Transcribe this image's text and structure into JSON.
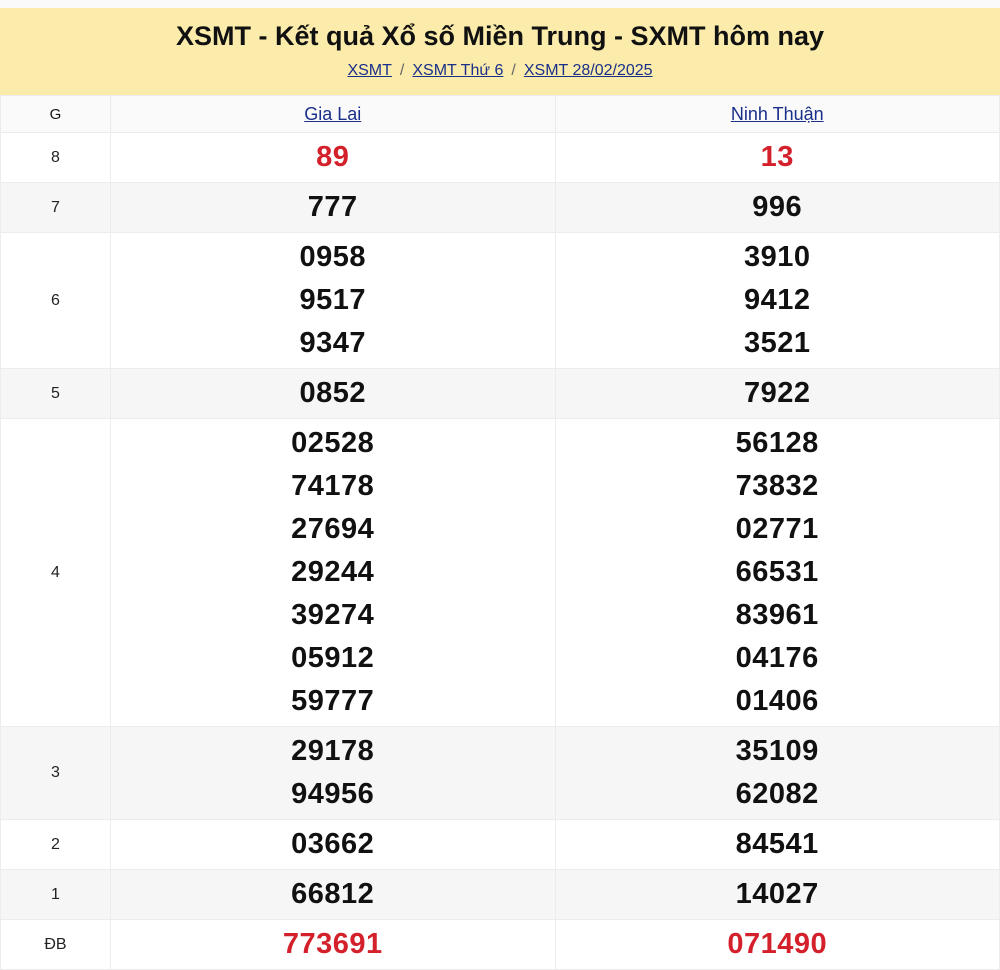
{
  "header": {
    "title": "XSMT - Kết quả Xổ số Miền Trung - SXMT hôm nay",
    "breadcrumb": [
      "XSMT",
      "XSMT Thứ 6",
      "XSMT 28/02/2025"
    ],
    "background_color": "#fcecab"
  },
  "table": {
    "columns": [
      "G",
      "Gia Lai",
      "Ninh Thuận"
    ],
    "highlight_color": "#d4202a",
    "rows": [
      {
        "prize": "8",
        "gia_lai": [
          "89"
        ],
        "ninh_thuan": [
          "13"
        ],
        "highlight": true
      },
      {
        "prize": "7",
        "gia_lai": [
          "777"
        ],
        "ninh_thuan": [
          "996"
        ]
      },
      {
        "prize": "6",
        "gia_lai": [
          "0958",
          "9517",
          "9347"
        ],
        "ninh_thuan": [
          "3910",
          "9412",
          "3521"
        ]
      },
      {
        "prize": "5",
        "gia_lai": [
          "0852"
        ],
        "ninh_thuan": [
          "7922"
        ]
      },
      {
        "prize": "4",
        "gia_lai": [
          "02528",
          "74178",
          "27694",
          "29244",
          "39274",
          "05912",
          "59777"
        ],
        "ninh_thuan": [
          "56128",
          "73832",
          "02771",
          "66531",
          "83961",
          "04176",
          "01406"
        ]
      },
      {
        "prize": "3",
        "gia_lai": [
          "29178",
          "94956"
        ],
        "ninh_thuan": [
          "35109",
          "62082"
        ]
      },
      {
        "prize": "2",
        "gia_lai": [
          "03662"
        ],
        "ninh_thuan": [
          "84541"
        ]
      },
      {
        "prize": "1",
        "gia_lai": [
          "66812"
        ],
        "ninh_thuan": [
          "14027"
        ]
      },
      {
        "prize": "ĐB",
        "gia_lai": [
          "773691"
        ],
        "ninh_thuan": [
          "071490"
        ],
        "highlight": true
      }
    ]
  }
}
